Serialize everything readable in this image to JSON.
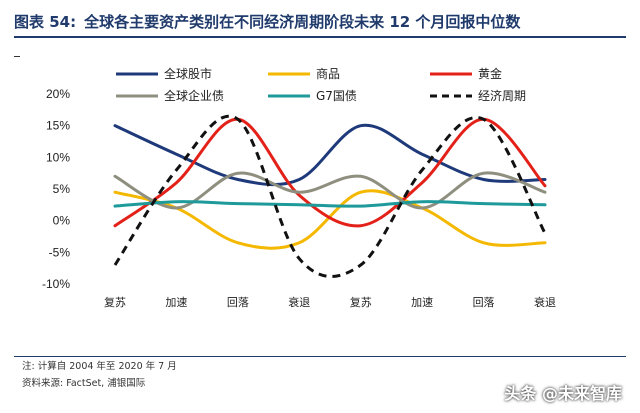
{
  "header": {
    "figure_number": "图表 54:",
    "title": "全球各主要资产类别在不同经济周期阶段未来 12 个月回报中位数"
  },
  "notes": {
    "note": "注: 计算自 2004 年至 2020 年 7 月",
    "source": "资料来源: FactSet, 浦银国际"
  },
  "watermark": "头条 @未来智库",
  "chart_data": {
    "type": "line",
    "categories": [
      "复苏",
      "加速",
      "回落",
      "衰退",
      "复苏",
      "加速",
      "回落",
      "衰退"
    ],
    "y_ticks": [
      "20%",
      "15%",
      "10%",
      "5%",
      "0%",
      "-5%",
      "-10%"
    ],
    "ylim": [
      -10,
      20
    ],
    "grid": false,
    "legend_position": "top",
    "series": [
      {
        "name": "全球股市",
        "color": "#1f3a7a",
        "dashed": false,
        "values": [
          15,
          10.5,
          6.5,
          6.5,
          15,
          10.5,
          6.5,
          6.5
        ]
      },
      {
        "name": "商品",
        "color": "#f5b800",
        "dashed": false,
        "values": [
          4.5,
          2,
          -3.5,
          -3.5,
          4.5,
          2,
          -3.5,
          -3.5
        ]
      },
      {
        "name": "黄金",
        "color": "#e32119",
        "dashed": false,
        "values": [
          -0.8,
          6,
          16,
          4,
          -0.8,
          6,
          16,
          5.5
        ]
      },
      {
        "name": "全球企业债",
        "color": "#8f8f80",
        "dashed": false,
        "values": [
          7,
          2,
          7.5,
          4.5,
          7,
          2,
          7.5,
          4.5
        ]
      },
      {
        "name": "G7国债",
        "color": "#1f9a9a",
        "dashed": false,
        "values": [
          2.3,
          3,
          2.7,
          2.5,
          2.3,
          3,
          2.7,
          2.5
        ]
      },
      {
        "name": "经济周期",
        "color": "#111111",
        "dashed": true,
        "values": [
          -7,
          8,
          16,
          -6,
          -7,
          8,
          16,
          -2
        ]
      }
    ]
  }
}
